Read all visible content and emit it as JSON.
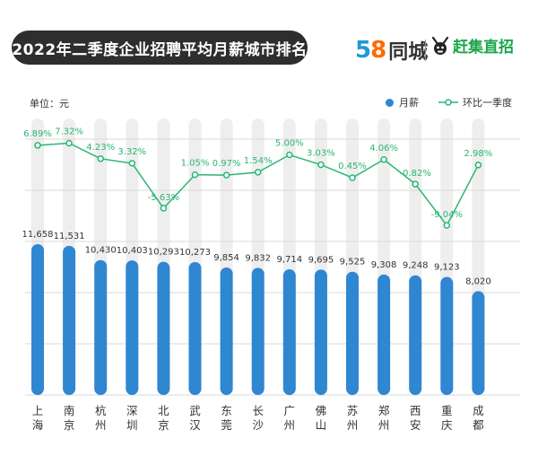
{
  "title": "2022年二季度企业招聘平均月薪城市排名",
  "logos": {
    "brand_58_digits": [
      "5",
      "8"
    ],
    "brand_58_text": "同城",
    "brand_gj_text": "赶集直招"
  },
  "colors": {
    "bar": "#2f86d1",
    "line": "#2bb673",
    "grid": "#d9d9d9"
  },
  "chart_data": {
    "type": "bar",
    "unit_label": "单位：元",
    "categories": [
      "上海",
      "南京",
      "杭州",
      "深圳",
      "北京",
      "武汉",
      "东莞",
      "长沙",
      "广州",
      "佛山",
      "苏州",
      "郑州",
      "西安",
      "重庆",
      "成都"
    ],
    "series": [
      {
        "name": "月薪",
        "type": "bar",
        "values": [
          11658,
          11531,
          10430,
          10403,
          10293,
          10273,
          9854,
          9832,
          9714,
          9695,
          9525,
          9308,
          9248,
          9123,
          8020
        ],
        "labels": [
          "11,658",
          "11,531",
          "10,430",
          "10,403",
          "10,293",
          "10,273",
          "9,854",
          "9,832",
          "9,714",
          "9,695",
          "9,525",
          "9,308",
          "9,248",
          "9,123",
          "8,020"
        ]
      },
      {
        "name": "环比一季度",
        "type": "line",
        "values": [
          6.89,
          7.32,
          4.23,
          3.32,
          -5.63,
          1.05,
          0.97,
          1.54,
          5.0,
          3.03,
          0.45,
          4.06,
          -0.82,
          -9.04,
          2.98
        ],
        "labels": [
          "6.89%",
          "7.32%",
          "4.23%",
          "3.32%",
          "-5.63%",
          "1.05%",
          "0.97%",
          "1.54%",
          "5.00%",
          "3.03%",
          "0.45%",
          "4.06%",
          "-0.82%",
          "-9.04%",
          "2.98%"
        ]
      }
    ],
    "grid": true,
    "legend": "top-right"
  }
}
